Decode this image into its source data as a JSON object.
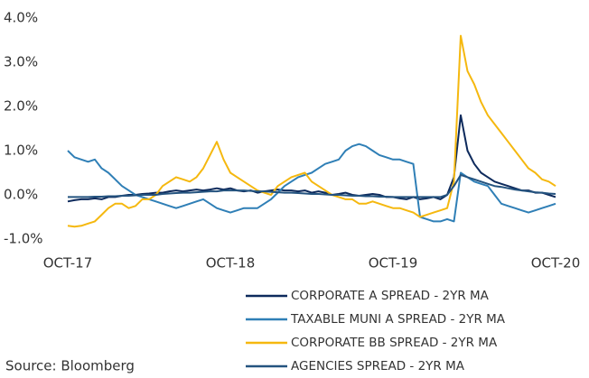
{
  "chart_data": {
    "type": "line",
    "categories": [
      "OCT-17",
      null,
      null,
      null,
      null,
      null,
      null,
      null,
      null,
      null,
      null,
      null,
      null,
      null,
      null,
      null,
      null,
      null,
      null,
      null,
      null,
      null,
      null,
      null,
      "OCT-18",
      null,
      null,
      null,
      null,
      null,
      null,
      null,
      null,
      null,
      null,
      null,
      null,
      null,
      null,
      null,
      null,
      null,
      null,
      null,
      null,
      null,
      null,
      null,
      "OCT-19",
      null,
      null,
      null,
      null,
      null,
      null,
      null,
      null,
      null,
      null,
      null,
      null,
      null,
      null,
      null,
      null,
      null,
      null,
      null,
      null,
      null,
      null,
      null,
      "OCT-20"
    ],
    "series": [
      {
        "name": "CORPORATE A SPREAD - 2YR MA",
        "color": "#0d2a5c",
        "values": [
          -0.15,
          -0.12,
          -0.1,
          -0.1,
          -0.08,
          -0.1,
          -0.05,
          -0.05,
          -0.02,
          0,
          0,
          0.02,
          0.03,
          0.05,
          0.05,
          0.08,
          0.1,
          0.08,
          0.1,
          0.12,
          0.1,
          0.12,
          0.15,
          0.12,
          0.15,
          0.1,
          0.08,
          0.1,
          0.05,
          0.08,
          0.1,
          0.12,
          0.1,
          0.1,
          0.08,
          0.1,
          0.05,
          0.08,
          0.05,
          0,
          0.02,
          0.05,
          0,
          -0.02,
          0,
          0.02,
          0,
          -0.05,
          -0.05,
          -0.08,
          -0.1,
          -0.05,
          -0.1,
          -0.08,
          -0.05,
          -0.1,
          0,
          0.4,
          1.8,
          1.0,
          0.7,
          0.5,
          0.4,
          0.3,
          0.25,
          0.2,
          0.15,
          0.1,
          0.1,
          0.05,
          0.05,
          0,
          -0.05
        ]
      },
      {
        "name": "TAXABLE MUNI A SPREAD - 2YR MA",
        "color": "#2f7fb6",
        "values": [
          1.0,
          0.85,
          0.8,
          0.75,
          0.8,
          0.6,
          0.5,
          0.35,
          0.2,
          0.1,
          0,
          -0.05,
          -0.1,
          -0.15,
          -0.2,
          -0.25,
          -0.3,
          -0.25,
          -0.2,
          -0.15,
          -0.1,
          -0.2,
          -0.3,
          -0.35,
          -0.4,
          -0.35,
          -0.3,
          -0.3,
          -0.3,
          -0.2,
          -0.1,
          0.05,
          0.2,
          0.3,
          0.4,
          0.45,
          0.5,
          0.6,
          0.7,
          0.75,
          0.8,
          1.0,
          1.1,
          1.15,
          1.1,
          1.0,
          0.9,
          0.85,
          0.8,
          0.8,
          0.75,
          0.7,
          -0.5,
          -0.55,
          -0.6,
          -0.6,
          -0.55,
          -0.6,
          0.5,
          0.4,
          0.3,
          0.25,
          0.2,
          0,
          -0.2,
          -0.25,
          -0.3,
          -0.35,
          -0.4,
          -0.35,
          -0.3,
          -0.25,
          -0.2
        ]
      },
      {
        "name": "CORPORATE BB SPREAD - 2YR MA",
        "color": "#f5b80f",
        "values": [
          -0.7,
          -0.72,
          -0.7,
          -0.65,
          -0.6,
          -0.45,
          -0.3,
          -0.2,
          -0.2,
          -0.3,
          -0.25,
          -0.1,
          -0.1,
          0,
          0.2,
          0.3,
          0.4,
          0.35,
          0.3,
          0.4,
          0.6,
          0.9,
          1.2,
          0.8,
          0.5,
          0.4,
          0.3,
          0.2,
          0.1,
          0.05,
          0,
          0.2,
          0.3,
          0.4,
          0.45,
          0.5,
          0.3,
          0.2,
          0.1,
          0,
          -0.05,
          -0.1,
          -0.1,
          -0.2,
          -0.2,
          -0.15,
          -0.2,
          -0.25,
          -0.3,
          -0.3,
          -0.35,
          -0.4,
          -0.5,
          -0.45,
          -0.4,
          -0.35,
          -0.3,
          0.3,
          3.6,
          2.8,
          2.5,
          2.1,
          1.8,
          1.6,
          1.4,
          1.2,
          1.0,
          0.8,
          0.6,
          0.5,
          0.35,
          0.3,
          0.2
        ]
      },
      {
        "name": "AGENCIES SPREAD - 2YR MA",
        "color": "#24537f",
        "values": [
          -0.05,
          -0.05,
          -0.05,
          -0.05,
          -0.04,
          -0.04,
          -0.03,
          -0.03,
          -0.02,
          -0.02,
          -0.01,
          0,
          0,
          0,
          0.02,
          0.03,
          0.04,
          0.05,
          0.05,
          0.06,
          0.07,
          0.08,
          0.08,
          0.1,
          0.1,
          0.1,
          0.1,
          0.09,
          0.08,
          0.08,
          0.07,
          0.06,
          0.05,
          0.05,
          0.04,
          0.03,
          0.02,
          0.02,
          0.01,
          0,
          0,
          -0.01,
          -0.02,
          -0.02,
          -0.03,
          -0.03,
          -0.04,
          -0.04,
          -0.05,
          -0.05,
          -0.05,
          -0.05,
          -0.05,
          -0.05,
          -0.05,
          -0.05,
          0,
          0.2,
          0.45,
          0.4,
          0.35,
          0.3,
          0.25,
          0.2,
          0.18,
          0.15,
          0.12,
          0.1,
          0.08,
          0.06,
          0.05,
          0.03,
          0.02
        ]
      }
    ],
    "ylim": [
      -1,
      4
    ],
    "yticks": [
      {
        "value": -1,
        "label": "-1.0%"
      },
      {
        "value": 0,
        "label": "0.0%"
      },
      {
        "value": 1,
        "label": "1.0%"
      },
      {
        "value": 2,
        "label": "2.0%"
      },
      {
        "value": 3,
        "label": "3.0%"
      },
      {
        "value": 4,
        "label": "4.0%"
      }
    ],
    "source": "Source: Bloomberg"
  }
}
